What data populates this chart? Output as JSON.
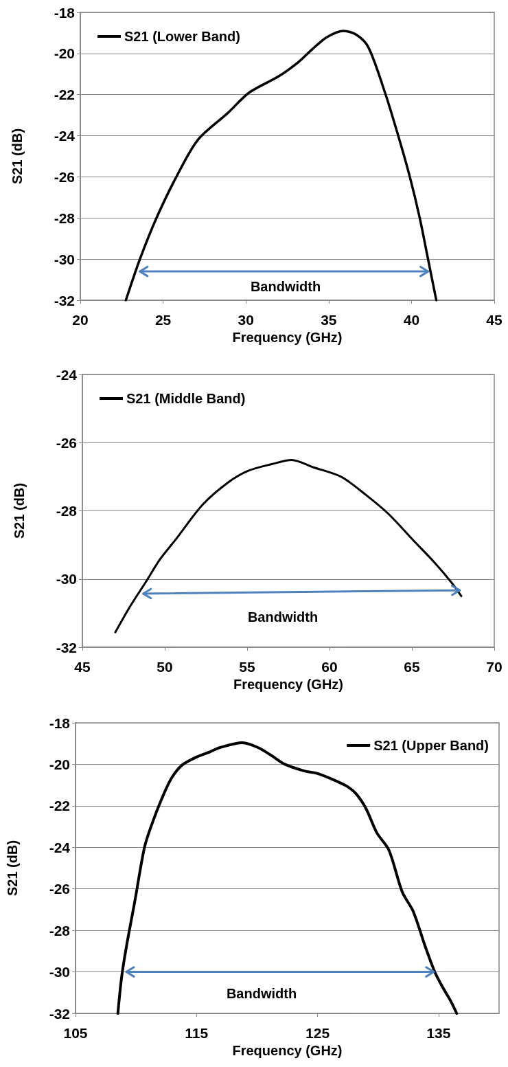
{
  "chart_data": [
    {
      "type": "line",
      "xlabel": "Frequency (GHz)",
      "ylabel": "S21 (dB)",
      "xlim": [
        20,
        45
      ],
      "xticks": [
        20,
        25,
        30,
        35,
        40,
        45
      ],
      "ylim": [
        -32,
        -18
      ],
      "yticks": [
        -32,
        -30,
        -28,
        -26,
        -24,
        -22,
        -20,
        -18
      ],
      "grid": "y",
      "legend": "top left",
      "marker": "none",
      "line_style": "solid",
      "annotations": [
        "Bandwidth"
      ],
      "series": [
        {
          "name": "S21 (Lower Band)",
          "color": "#000000",
          "x": [
            22.75,
            23.6,
            24.6,
            25.8,
            27.1,
            28.9,
            30.2,
            32.0,
            33.2,
            34.0,
            34.9,
            35.9,
            36.7,
            37.4,
            38.4,
            39.2,
            39.9,
            40.5,
            41.0,
            41.5
          ],
          "values": [
            -32,
            -30,
            -28,
            -26,
            -24.2,
            -22.9,
            -21.9,
            -21.1,
            -20.4,
            -19.8,
            -19.2,
            -18.9,
            -19.1,
            -19.7,
            -21.9,
            -24,
            -26,
            -28,
            -30,
            -32
          ]
        },
        {
          "type": "line",
          "color": "#4f81bd",
          "x": [
            23.6,
            41.0
          ],
          "values": [
            -30.6,
            -30.6
          ]
        }
      ]
    },
    {
      "type": "line",
      "xlabel": "Frequency (GHz)",
      "ylabel": "S21 (dB)",
      "xlim": [
        45,
        70
      ],
      "xticks": [
        45,
        50,
        55,
        60,
        65,
        70
      ],
      "ylim": [
        -32,
        -24
      ],
      "yticks": [
        -32,
        -30,
        -28,
        -26,
        -24
      ],
      "grid": "y",
      "legend": "top left",
      "marker": "none",
      "line_style": "solid",
      "annotations": [
        "Bandwidth"
      ],
      "series": [
        {
          "name": "S21 (Middle Band)",
          "color": "#000000",
          "x": [
            47.0,
            47.9,
            48.9,
            49.7,
            50.7,
            52.3,
            53.9,
            55.1,
            56.5,
            57.7,
            59.0,
            60.7,
            62.2,
            63.6,
            65.0,
            66.4,
            67.4,
            68.0
          ],
          "values": [
            -31.56,
            -30.8,
            -30.05,
            -29.43,
            -28.82,
            -27.82,
            -27.15,
            -26.82,
            -26.63,
            -26.51,
            -26.72,
            -27.0,
            -27.53,
            -28.1,
            -28.82,
            -29.53,
            -30.1,
            -30.5
          ]
        },
        {
          "type": "line",
          "color": "#4f81bd",
          "x": [
            48.7,
            67.9
          ],
          "values": [
            -30.43,
            -30.33
          ]
        }
      ]
    },
    {
      "type": "line",
      "xlabel": "Frequency (GHz)",
      "ylabel": "S21 (dB)",
      "xlim": [
        105,
        140
      ],
      "xticks": [
        105,
        115,
        125,
        135
      ],
      "ylim": [
        -32,
        -18
      ],
      "yticks": [
        -32,
        -30,
        -28,
        -26,
        -24,
        -22,
        -20,
        -18
      ],
      "grid": "y",
      "legend": "top right",
      "marker": "none",
      "line_style": "solid",
      "annotations": [
        "Bandwidth"
      ],
      "series": [
        {
          "name": "S21 (Upper Band)",
          "color": "#000000",
          "x": [
            108.5,
            108.8,
            109.2,
            109.9,
            110.7,
            111.3,
            112.1,
            112.9,
            113.8,
            115.0,
            116.1,
            116.9,
            118.8,
            120.1,
            121.2,
            122.3,
            123.9,
            124.9,
            126.3,
            127.4,
            128.2,
            129.0,
            129.9,
            130.9,
            132.0,
            132.9,
            133.9,
            134.7,
            135.4,
            136.0,
            136.5
          ],
          "values": [
            -32,
            -30.3,
            -28.8,
            -26.6,
            -24,
            -22.9,
            -21.7,
            -20.7,
            -20.04,
            -19.65,
            -19.4,
            -19.2,
            -18.96,
            -19.2,
            -19.58,
            -20.0,
            -20.32,
            -20.43,
            -20.74,
            -21.05,
            -21.43,
            -22.13,
            -23.3,
            -24.14,
            -26.15,
            -27.08,
            -28.78,
            -30.02,
            -30.8,
            -31.4,
            -32
          ]
        },
        {
          "type": "line",
          "color": "#4f81bd",
          "x": [
            109.2,
            134.6
          ],
          "values": [
            -30,
            -30
          ]
        }
      ]
    }
  ]
}
